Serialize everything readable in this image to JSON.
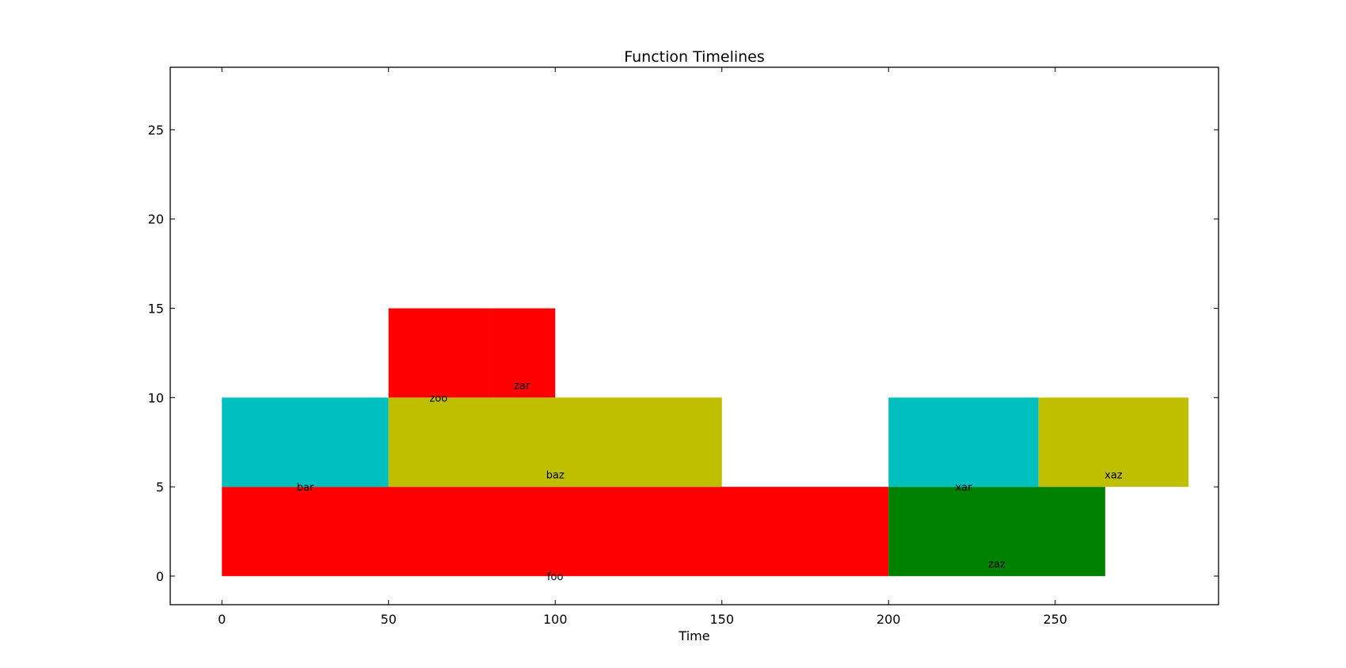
{
  "chart_data": {
    "type": "bar",
    "orientation": "timeline",
    "title": "Function Timelines",
    "xlabel": "Time",
    "ylabel": "",
    "xlim": [
      -15.5,
      299
    ],
    "ylim": [
      -1.6,
      28.5
    ],
    "xticks": [
      0,
      50,
      100,
      150,
      200,
      250
    ],
    "yticks": [
      0,
      5,
      10,
      15,
      20,
      25
    ],
    "grid": false,
    "legend": "none",
    "bars": [
      {
        "label": "foo",
        "start": 0,
        "end": 200,
        "bottom": 0,
        "top": 5,
        "color": "#ff0000"
      },
      {
        "label": "zaz",
        "start": 200,
        "end": 265,
        "bottom": 0,
        "top": 5,
        "color": "#008000"
      },
      {
        "label": "bar",
        "start": 0,
        "end": 50,
        "bottom": 5,
        "top": 10,
        "color": "#00bfbf"
      },
      {
        "label": "baz",
        "start": 50,
        "end": 150,
        "bottom": 5,
        "top": 10,
        "color": "#bfbf00"
      },
      {
        "label": "xar",
        "start": 200,
        "end": 245,
        "bottom": 5,
        "top": 10,
        "color": "#00bfbf"
      },
      {
        "label": "xaz",
        "start": 245,
        "end": 290,
        "bottom": 5,
        "top": 10,
        "color": "#bfbf00"
      },
      {
        "label": "zoo",
        "start": 50,
        "end": 80,
        "bottom": 10,
        "top": 15,
        "color": "#ff0000"
      },
      {
        "label": "zar",
        "start": 80,
        "end": 100,
        "bottom": 10,
        "top": 15,
        "color": "#ff0000"
      }
    ],
    "bar_labels": [
      {
        "text": "foo",
        "x": 100,
        "y": 0
      },
      {
        "text": "zaz",
        "x": 232.5,
        "y": 0.7
      },
      {
        "text": "bar",
        "x": 25,
        "y": 5
      },
      {
        "text": "baz",
        "x": 100,
        "y": 5.7
      },
      {
        "text": "xar",
        "x": 222.5,
        "y": 5
      },
      {
        "text": "xaz",
        "x": 267.5,
        "y": 5.7
      },
      {
        "text": "zoo",
        "x": 65,
        "y": 10
      },
      {
        "text": "zar",
        "x": 90,
        "y": 10.7
      }
    ]
  }
}
